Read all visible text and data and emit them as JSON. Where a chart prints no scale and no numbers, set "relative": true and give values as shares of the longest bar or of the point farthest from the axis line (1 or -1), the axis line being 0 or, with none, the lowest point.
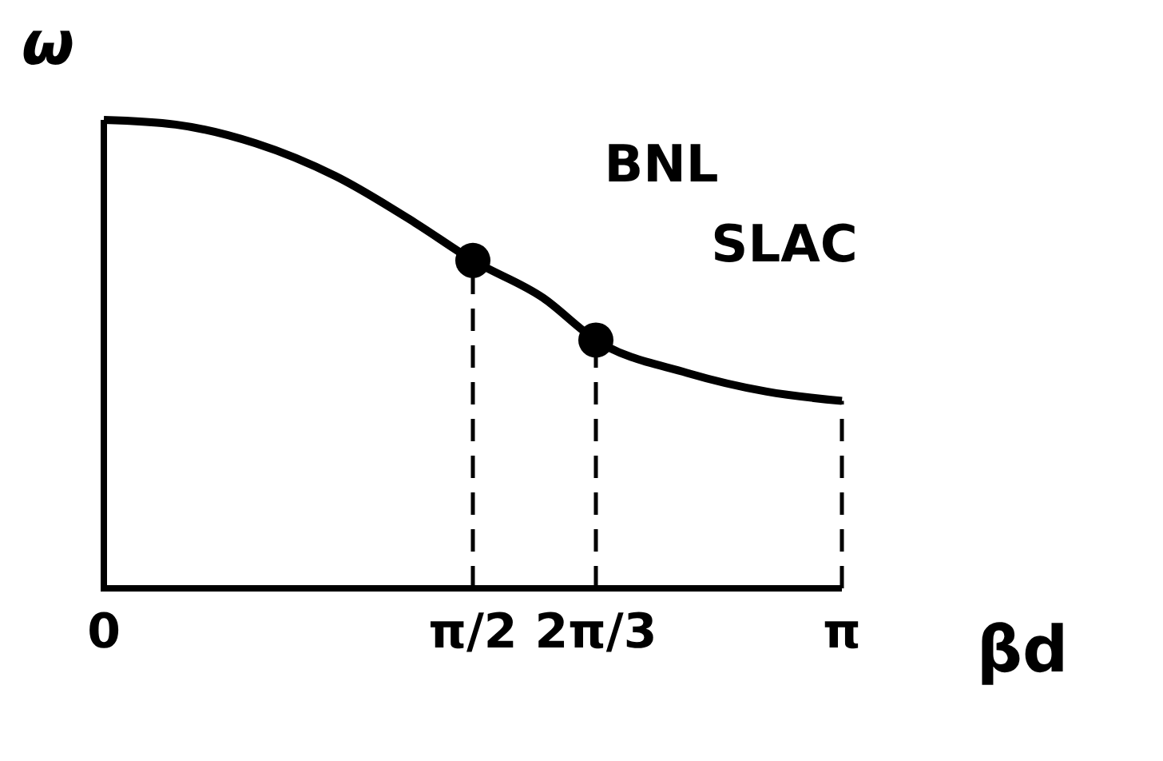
{
  "chart_data": {
    "type": "line",
    "relative": true,
    "xlabel": "βd",
    "ylabel": "ω",
    "tick_labels": "x",
    "xlim": [
      0,
      3.1416
    ],
    "xticks": [
      0,
      {
        "value": 1.5708,
        "label": "π/2"
      },
      {
        "value": 2.0944,
        "label": "2π/3"
      },
      {
        "value": 3.1416,
        "label": "π"
      }
    ],
    "series": [
      {
        "color": "#000000",
        "marker": "none",
        "x": [
          0,
          0.306,
          0.646,
          0.986,
          1.326,
          1.5708,
          1.87,
          2.0944,
          2.482,
          2.822,
          3.1416
        ],
        "values": [
          1,
          0.99,
          0.95,
          0.88,
          0.78,
          0.7,
          0.62,
          0.53,
          0.46,
          0.42,
          0.4
        ]
      },
      {
        "type": "scatter",
        "color": "#000000",
        "marker": "circle",
        "x": [
          1.5708,
          2.0944
        ],
        "values": [
          0.7,
          0.53
        ]
      }
    ],
    "ref_lines": [
      {
        "axis": "x",
        "value": 1.5708,
        "line_style": "dashed"
      },
      {
        "axis": "x",
        "value": 2.0944,
        "line_style": "dashed"
      },
      {
        "axis": "x",
        "value": 3.1416,
        "line_style": "dashed"
      }
    ],
    "annotations": [
      {
        "text": "BNL",
        "x": 1.5708,
        "y": 0.7
      },
      {
        "text": "SLAC",
        "x": 2.0944,
        "y": 0.53
      }
    ]
  }
}
